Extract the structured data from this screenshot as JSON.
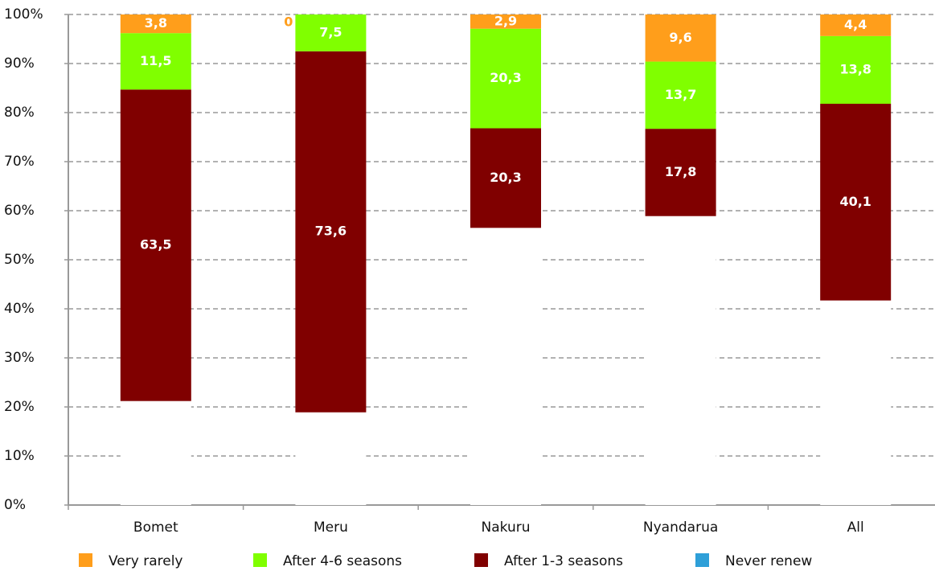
{
  "chart_data": {
    "type": "stacked_bar",
    "categories": [
      "Bomet",
      "Meru",
      "Nakuru",
      "Nyandarua",
      "All"
    ],
    "series": [
      {
        "name": "Never renew",
        "color": "#2e9fd8",
        "values": [
          21.2,
          18.9,
          56.5,
          58.9,
          41.7
        ]
      },
      {
        "name": "After 1-3 seasons",
        "color": "#800000",
        "values": [
          63.5,
          73.6,
          20.3,
          17.8,
          40.1
        ],
        "value_labels": [
          "63,5",
          "73,6",
          "20,3",
          "17,8",
          "40,1"
        ]
      },
      {
        "name": "After 4-6 seasons",
        "color": "#80ff00",
        "values": [
          11.5,
          7.5,
          20.3,
          13.7,
          13.8
        ],
        "value_labels": [
          "11,5",
          "7,5",
          "20,3",
          "13,7",
          "13,8"
        ]
      },
      {
        "name": "Very rarely",
        "color": "#ff9e1b",
        "values": [
          3.8,
          0,
          2.9,
          9.6,
          4.4
        ],
        "value_labels": [
          "3,8",
          "0",
          "2,9",
          "9,6",
          "4,4"
        ]
      }
    ],
    "legend_order": [
      "Very rarely",
      "After 4-6 seasons",
      "After 1-3 seasons",
      "Never renew"
    ],
    "ylim": [
      0,
      100
    ],
    "yticks": [
      {
        "value": 0,
        "label": "0%"
      },
      {
        "value": 10,
        "label": "10%"
      },
      {
        "value": 20,
        "label": "20%"
      },
      {
        "value": 30,
        "label": "30%"
      },
      {
        "value": 40,
        "label": "40%"
      },
      {
        "value": 50,
        "label": "50%"
      },
      {
        "value": 60,
        "label": "60%"
      },
      {
        "value": 70,
        "label": "70%"
      },
      {
        "value": 80,
        "label": "80%"
      },
      {
        "value": 90,
        "label": "90%"
      },
      {
        "value": 100,
        "label": "100%"
      }
    ],
    "grid": true,
    "legend": "bottom"
  }
}
